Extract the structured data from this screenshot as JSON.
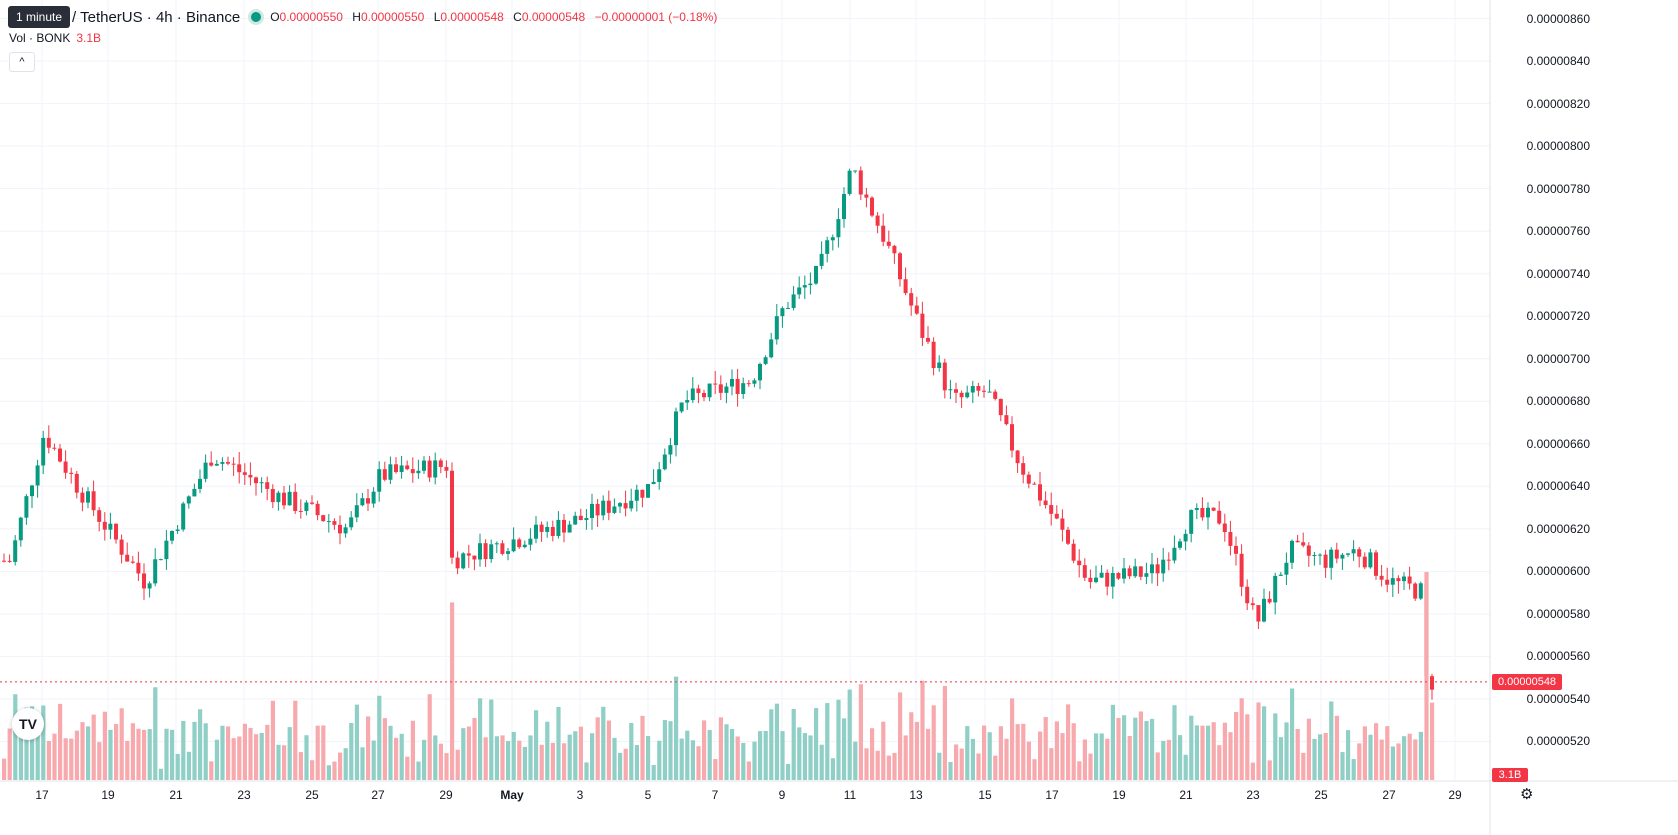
{
  "header": {
    "tooltip": "1 minute",
    "symbol": "/ TetherUS · 4h · Binance",
    "ohlc": {
      "o_label": "O",
      "o": "0.00000550",
      "h_label": "H",
      "h": "0.00000550",
      "l_label": "L",
      "l": "0.00000548",
      "c_label": "C",
      "c": "0.00000548",
      "change": "−0.00000001 (−0.18%)"
    }
  },
  "volume_legend": {
    "label": "Vol · BONK",
    "value": "3.1B"
  },
  "collapse_icon": "chevron-up-icon",
  "price_axis_labels": [
    "0.00000860",
    "0.00000840",
    "0.00000820",
    "0.00000800",
    "0.00000780",
    "0.00000760",
    "0.00000740",
    "0.00000720",
    "0.00000700",
    "0.00000680",
    "0.00000660",
    "0.00000640",
    "0.00000620",
    "0.00000600",
    "0.00000580",
    "0.00000560",
    "0.00000540",
    "0.00000520"
  ],
  "date_axis_labels": [
    "17",
    "19",
    "21",
    "23",
    "25",
    "27",
    "29",
    "May",
    "3",
    "5",
    "7",
    "9",
    "11",
    "13",
    "15",
    "17",
    "19",
    "21",
    "23",
    "25",
    "27",
    "29"
  ],
  "last_price_tag": "0.00000548",
  "volume_tag": "3.1B",
  "logo_text": "TV",
  "settings_icon": "gear-icon",
  "colors": {
    "up": "#089981",
    "down": "#f23645",
    "up_vol": "#8fcfc6",
    "down_vol": "#f7a9ad",
    "grid": "#f0f3fa"
  },
  "chart_data": {
    "type": "candlestick",
    "interval": "4h",
    "y_range": [
      5.15e-06,
      8.65e-06
    ],
    "x_range": [
      "Apr 16",
      "May 29"
    ],
    "key_points": [
      {
        "date": "Apr 16",
        "price": 6.05e-06
      },
      {
        "date": "Apr 17",
        "price": 6.65e-06
      },
      {
        "date": "Apr 18",
        "price": 6.4e-06
      },
      {
        "date": "Apr 20",
        "price": 5.95e-06
      },
      {
        "date": "Apr 22",
        "price": 6.55e-06
      },
      {
        "date": "Apr 24",
        "price": 6.35e-06
      },
      {
        "date": "Apr 26",
        "price": 6.2e-06
      },
      {
        "date": "Apr 27",
        "price": 6.45e-06
      },
      {
        "date": "Apr 29",
        "price": 6.5e-06
      },
      {
        "date": "Apr 29",
        "price": 6.05e-06
      },
      {
        "date": "May 3",
        "price": 6.25e-06
      },
      {
        "date": "May 5",
        "price": 6.4e-06
      },
      {
        "date": "May 6",
        "price": 6.8e-06
      },
      {
        "date": "May 8",
        "price": 6.9e-06
      },
      {
        "date": "May 9",
        "price": 7.25e-06
      },
      {
        "date": "May 10",
        "price": 7.4e-06
      },
      {
        "date": "May 11",
        "price": 7.9e-06
      },
      {
        "date": "May 12",
        "price": 7.55e-06
      },
      {
        "date": "May 13",
        "price": 7.15e-06
      },
      {
        "date": "May 14",
        "price": 6.8e-06
      },
      {
        "date": "May 15",
        "price": 6.85e-06
      },
      {
        "date": "May 16",
        "price": 6.5e-06
      },
      {
        "date": "May 17",
        "price": 6.25e-06
      },
      {
        "date": "May 18",
        "price": 5.95e-06
      },
      {
        "date": "May 20",
        "price": 6e-06
      },
      {
        "date": "May 21",
        "price": 6.25e-06
      },
      {
        "date": "May 22",
        "price": 6.25e-06
      },
      {
        "date": "May 23",
        "price": 5.75e-06
      },
      {
        "date": "May 24",
        "price": 6.1e-06
      },
      {
        "date": "May 25",
        "price": 6.05e-06
      },
      {
        "date": "May 26",
        "price": 6.1e-06
      },
      {
        "date": "May 27",
        "price": 5.95e-06
      },
      {
        "date": "May 28",
        "price": 5.9e-06
      },
      {
        "date": "May 28",
        "price": 5.48e-06
      }
    ],
    "last_price": 5.48e-06,
    "last_volume": "3.1B"
  }
}
